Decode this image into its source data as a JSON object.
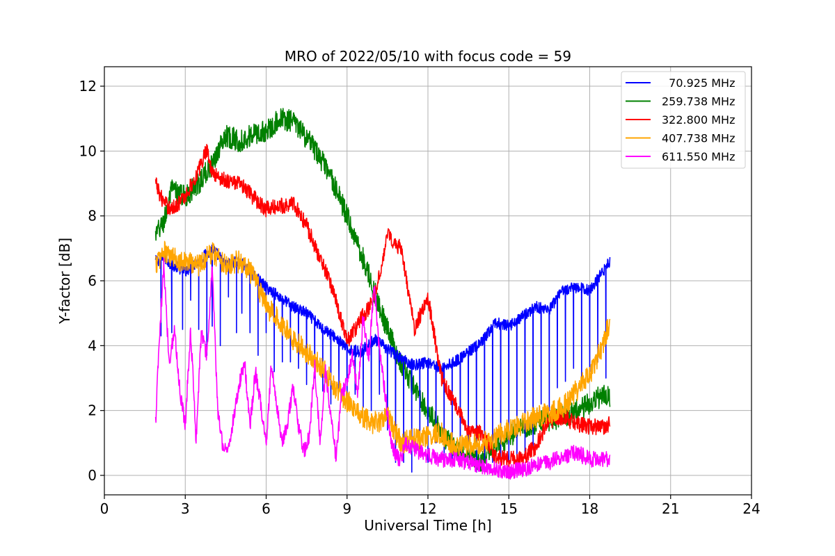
{
  "chart_data": {
    "type": "line",
    "title": "MRO of 2022/05/10 with focus code = 59",
    "xlabel": "Universal Time [h]",
    "ylabel": "Y-factor [dB]",
    "xlim": [
      0,
      24
    ],
    "ylim": [
      -0.6,
      12.6
    ],
    "xticks": [
      0,
      3,
      6,
      9,
      12,
      15,
      18,
      21,
      24
    ],
    "yticks": [
      0,
      2,
      4,
      6,
      8,
      10,
      12
    ],
    "grid": true,
    "legend_position": "top-right",
    "series": [
      {
        "name": "70.925 MHz",
        "legend_label": "  70.925 MHz",
        "color": "#0000ff",
        "x": [
          1.9,
          2.2,
          2.5,
          3.0,
          3.5,
          4.0,
          4.5,
          5.0,
          5.5,
          6.0,
          6.5,
          7.0,
          7.5,
          8.0,
          8.5,
          9.0,
          9.5,
          10.0,
          10.5,
          11.0,
          11.5,
          12.0,
          12.5,
          13.0,
          13.5,
          14.0,
          14.5,
          15.0,
          15.5,
          16.0,
          16.5,
          17.0,
          17.5,
          18.0,
          18.5,
          18.75
        ],
        "y": [
          6.6,
          6.7,
          6.5,
          6.3,
          6.6,
          7.0,
          6.5,
          6.6,
          6.2,
          5.8,
          5.5,
          5.2,
          5.0,
          4.6,
          4.3,
          3.9,
          3.8,
          4.2,
          3.9,
          3.6,
          3.4,
          3.5,
          3.3,
          3.5,
          3.8,
          4.1,
          4.7,
          4.6,
          4.9,
          5.2,
          5.1,
          5.7,
          5.8,
          5.7,
          6.3,
          6.6
        ],
        "dips": [
          [
            2.1,
            4.3
          ],
          [
            2.5,
            4.4
          ],
          [
            2.9,
            4.5
          ],
          [
            3.2,
            5.4
          ],
          [
            3.5,
            4.5
          ],
          [
            3.8,
            3.7
          ],
          [
            4.0,
            4.6
          ],
          [
            4.3,
            4.0
          ],
          [
            4.6,
            5.5
          ],
          [
            4.9,
            4.4
          ],
          [
            5.1,
            5.0
          ],
          [
            5.4,
            4.4
          ],
          [
            5.7,
            3.7
          ],
          [
            6.0,
            4.4
          ],
          [
            6.3,
            3.2
          ],
          [
            6.6,
            3.5
          ],
          [
            6.9,
            3.5
          ],
          [
            7.2,
            3.3
          ],
          [
            7.5,
            2.8
          ],
          [
            7.8,
            3.0
          ],
          [
            8.1,
            2.6
          ],
          [
            8.4,
            2.2
          ],
          [
            8.7,
            2.6
          ],
          [
            9.0,
            2.0
          ],
          [
            9.3,
            2.5
          ],
          [
            9.6,
            2.1
          ],
          [
            9.9,
            2.0
          ],
          [
            10.2,
            2.5
          ],
          [
            10.5,
            1.4
          ],
          [
            10.8,
            0.4
          ],
          [
            11.1,
            0.4
          ],
          [
            11.4,
            0.1
          ],
          [
            11.7,
            0.8
          ],
          [
            12.0,
            0.4
          ],
          [
            12.3,
            1.0
          ],
          [
            12.6,
            0.6
          ],
          [
            12.9,
            0.3
          ],
          [
            13.2,
            0.5
          ],
          [
            13.5,
            0.8
          ],
          [
            13.8,
            0.1
          ],
          [
            14.1,
            0.5
          ],
          [
            14.4,
            0.4
          ],
          [
            14.7,
            0.4
          ],
          [
            15.0,
            0.4
          ],
          [
            15.3,
            0.3
          ],
          [
            15.6,
            0.6
          ],
          [
            15.9,
            0.8
          ],
          [
            16.2,
            2.2
          ],
          [
            16.5,
            2.0
          ],
          [
            16.8,
            2.7
          ],
          [
            17.1,
            2.9
          ],
          [
            17.4,
            3.3
          ],
          [
            17.7,
            2.9
          ],
          [
            18.0,
            3.2
          ],
          [
            18.3,
            3.5
          ],
          [
            18.6,
            3.0
          ]
        ]
      },
      {
        "name": "259.738 MHz",
        "legend_label": "259.738 MHz",
        "color": "#008000",
        "x": [
          1.9,
          2.2,
          2.5,
          3.0,
          3.5,
          4.0,
          4.5,
          5.0,
          5.5,
          6.0,
          6.5,
          7.0,
          7.5,
          8.0,
          8.5,
          9.0,
          9.5,
          10.0,
          10.5,
          11.0,
          11.5,
          12.0,
          12.5,
          13.0,
          13.5,
          14.0,
          14.5,
          15.0,
          15.5,
          16.0,
          16.5,
          17.0,
          17.5,
          18.0,
          18.5,
          18.75
        ],
        "y": [
          7.4,
          7.8,
          8.8,
          8.6,
          9.0,
          9.6,
          10.5,
          10.3,
          10.5,
          10.6,
          11.0,
          10.9,
          10.4,
          9.8,
          9.0,
          8.0,
          6.9,
          5.7,
          4.5,
          3.4,
          2.7,
          2.0,
          1.3,
          0.8,
          0.6,
          0.4,
          0.9,
          1.2,
          1.5,
          1.6,
          1.7,
          1.8,
          2.0,
          2.2,
          2.5,
          2.4
        ],
        "noise": 0.35
      },
      {
        "name": "322.800 MHz",
        "legend_label": "322.800 MHz",
        "color": "#ff0000",
        "x": [
          1.9,
          2.2,
          2.5,
          3.0,
          3.5,
          3.8,
          4.0,
          4.5,
          5.0,
          5.5,
          6.0,
          6.5,
          7.0,
          7.5,
          8.0,
          8.5,
          9.0,
          9.5,
          10.0,
          10.5,
          11.0,
          11.5,
          12.0,
          12.5,
          13.0,
          13.5,
          14.0,
          14.5,
          15.0,
          15.5,
          16.0,
          16.5,
          17.0,
          17.5,
          18.0,
          18.5,
          18.75
        ],
        "y": [
          9.0,
          8.4,
          8.2,
          8.6,
          9.4,
          10.1,
          9.3,
          9.1,
          9.0,
          8.6,
          8.2,
          8.3,
          8.4,
          7.7,
          6.7,
          5.7,
          4.1,
          4.8,
          5.4,
          7.4,
          7.0,
          4.5,
          5.5,
          3.0,
          2.2,
          1.4,
          1.3,
          0.6,
          0.5,
          0.5,
          0.9,
          1.7,
          1.8,
          1.6,
          1.5,
          1.5,
          1.6
        ],
        "noise": 0.25
      },
      {
        "name": "407.738 MHz",
        "legend_label": "407.738 MHz",
        "color": "#ffa500",
        "x": [
          1.9,
          2.2,
          2.5,
          3.0,
          3.5,
          4.0,
          4.5,
          5.0,
          5.5,
          6.0,
          6.5,
          7.0,
          7.5,
          8.0,
          8.5,
          9.0,
          9.5,
          10.0,
          10.5,
          11.0,
          11.5,
          12.0,
          12.5,
          13.0,
          13.5,
          14.0,
          14.5,
          15.0,
          15.5,
          16.0,
          16.5,
          17.0,
          17.5,
          18.0,
          18.5,
          18.75
        ],
        "y": [
          6.5,
          6.9,
          6.7,
          6.6,
          6.5,
          6.9,
          6.5,
          6.6,
          6.2,
          5.2,
          4.8,
          4.2,
          3.8,
          3.4,
          2.8,
          2.3,
          1.8,
          1.6,
          1.8,
          1.0,
          1.1,
          1.2,
          1.3,
          0.9,
          0.9,
          1.0,
          1.2,
          1.4,
          1.6,
          1.8,
          1.9,
          2.1,
          2.6,
          3.1,
          4.0,
          4.8
        ],
        "noise": 0.35
      },
      {
        "name": "611.550 MHz",
        "legend_label": "611.550 MHz",
        "color": "#ff00ff",
        "x": [
          1.9,
          2.0,
          2.2,
          2.4,
          2.6,
          2.8,
          3.0,
          3.2,
          3.4,
          3.6,
          3.8,
          4.0,
          4.2,
          4.4,
          4.6,
          4.8,
          5.0,
          5.2,
          5.4,
          5.6,
          5.8,
          6.0,
          6.2,
          6.4,
          6.6,
          6.8,
          7.0,
          7.2,
          7.4,
          7.6,
          7.8,
          8.0,
          8.2,
          8.4,
          8.6,
          8.8,
          9.0,
          9.2,
          9.4,
          9.6,
          9.8,
          10.0,
          10.2,
          10.4,
          10.6,
          10.8,
          11.0,
          11.2,
          11.5,
          12.0,
          12.5,
          13.0,
          13.5,
          14.0,
          14.5,
          15.0,
          15.5,
          16.0,
          16.5,
          17.0,
          17.5,
          18.0,
          18.5,
          18.75
        ],
        "y": [
          1.6,
          3.5,
          6.5,
          3.5,
          4.5,
          2.6,
          1.6,
          4.5,
          1.1,
          4.5,
          3.6,
          6.5,
          2.0,
          0.9,
          0.8,
          1.8,
          2.8,
          3.5,
          1.5,
          3.2,
          2.2,
          1.0,
          3.5,
          2.1,
          1.0,
          1.7,
          2.7,
          1.5,
          0.7,
          1.2,
          3.4,
          1.0,
          3.2,
          1.8,
          0.5,
          2.6,
          2.8,
          3.8,
          2.5,
          4.9,
          3.5,
          6.0,
          3.8,
          2.6,
          1.2,
          0.6,
          0.5,
          1.0,
          0.8,
          0.6,
          0.5,
          0.5,
          0.4,
          0.3,
          0.2,
          0.1,
          0.2,
          0.3,
          0.4,
          0.6,
          0.7,
          0.5,
          0.5,
          0.5
        ],
        "noise": 0.25
      }
    ]
  }
}
